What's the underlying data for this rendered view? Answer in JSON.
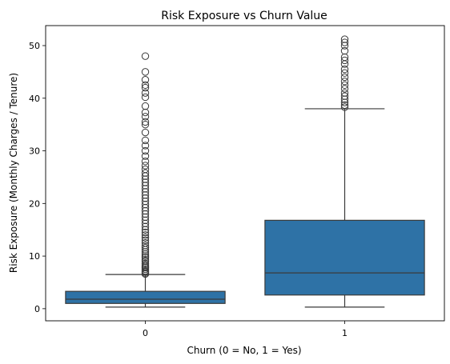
{
  "chart_data": {
    "type": "box",
    "title": "Risk Exposure vs Churn Value",
    "xlabel": "Churn (0 = No, 1 = Yes)",
    "ylabel": "Risk Exposure (Monthly Charges / Tenure)",
    "categories": [
      "0",
      "1"
    ],
    "ylim": [
      -2.3,
      53.8
    ],
    "yticks": [
      0,
      10,
      20,
      30,
      40,
      50
    ],
    "grid": false,
    "box_color": "#2e72a6",
    "boxes": [
      {
        "category": "0",
        "whisker_low": 0.3,
        "q1": 1.0,
        "median": 1.8,
        "q3": 3.3,
        "whisker_high": 6.5,
        "outliers": [
          6.6,
          6.8,
          7.0,
          7.2,
          7.5,
          7.8,
          8.0,
          8.3,
          8.6,
          9.0,
          9.3,
          9.7,
          10.0,
          10.4,
          10.8,
          11.2,
          11.6,
          12.0,
          12.5,
          13.0,
          13.5,
          14.0,
          14.5,
          15.0,
          15.6,
          16.2,
          16.8,
          17.4,
          18.0,
          18.6,
          19.2,
          19.8,
          20.4,
          21.0,
          21.6,
          22.2,
          22.8,
          23.4,
          24.0,
          24.6,
          25.2,
          25.8,
          26.5,
          27.2,
          28.0,
          29.0,
          30.0,
          31.0,
          32.0,
          33.5,
          35.0,
          35.5,
          36.5,
          37.3,
          38.5,
          40.2,
          41.0,
          42.0,
          42.5,
          43.5,
          45.0,
          48.0
        ]
      },
      {
        "category": "1",
        "whisker_low": 0.3,
        "q1": 2.6,
        "median": 6.8,
        "q3": 16.8,
        "whisker_high": 38.0,
        "outliers": [
          38.3,
          38.7,
          39.2,
          39.8,
          40.4,
          41.0,
          41.8,
          42.5,
          43.2,
          44.0,
          44.8,
          45.5,
          46.5,
          47.2,
          47.8,
          49.0,
          50.0,
          50.6,
          51.2
        ]
      }
    ]
  }
}
